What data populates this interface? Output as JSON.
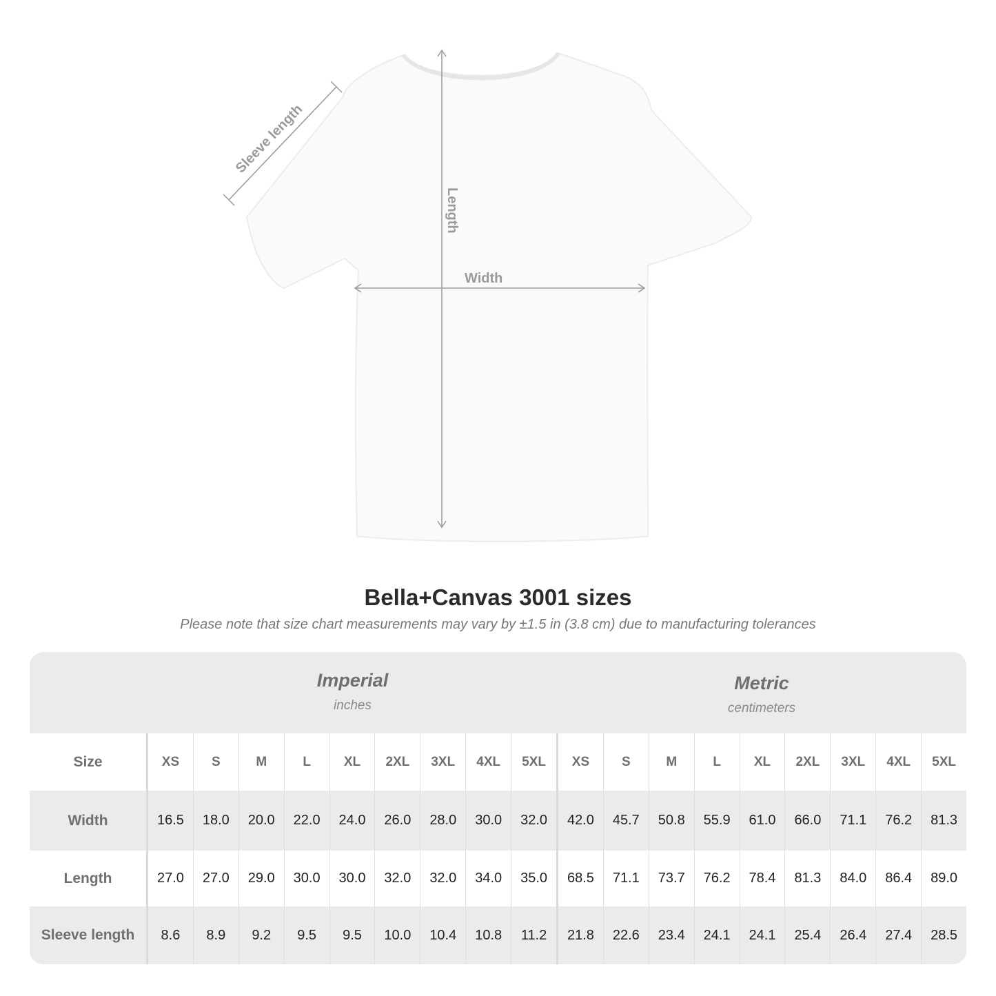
{
  "diagram": {
    "sleeve_label": "Sleeve length",
    "length_label": "Length",
    "width_label": "Width"
  },
  "title": "Bella+Canvas 3001 sizes",
  "subtitle": "Please note that size chart measurements may vary by ±1.5 in (3.8 cm) due to manufacturing tolerances",
  "table": {
    "imperial": {
      "name": "Imperial",
      "unit": "inches"
    },
    "metric": {
      "name": "Metric",
      "unit": "centimeters"
    },
    "size_header": "Size",
    "sizes": [
      "XS",
      "S",
      "M",
      "L",
      "XL",
      "2XL",
      "3XL",
      "4XL",
      "5XL",
      "XS",
      "S",
      "M",
      "L",
      "XL",
      "2XL",
      "3XL",
      "4XL",
      "5XL"
    ],
    "rows": [
      {
        "label": "Width",
        "values": [
          "16.5",
          "18.0",
          "20.0",
          "22.0",
          "24.0",
          "26.0",
          "28.0",
          "30.0",
          "32.0",
          "42.0",
          "45.7",
          "50.8",
          "55.9",
          "61.0",
          "66.0",
          "71.1",
          "76.2",
          "81.3"
        ]
      },
      {
        "label": "Length",
        "values": [
          "27.0",
          "27.0",
          "29.0",
          "30.0",
          "30.0",
          "32.0",
          "32.0",
          "34.0",
          "35.0",
          "68.5",
          "71.1",
          "73.7",
          "76.2",
          "78.4",
          "81.3",
          "84.0",
          "86.4",
          "89.0"
        ]
      },
      {
        "label": "Sleeve length",
        "values": [
          "8.6",
          "8.9",
          "9.2",
          "9.5",
          "9.5",
          "10.0",
          "10.4",
          "10.8",
          "11.2",
          "21.8",
          "22.6",
          "23.4",
          "24.1",
          "24.1",
          "25.4",
          "26.4",
          "27.4",
          "28.5"
        ]
      }
    ]
  },
  "colors": {
    "band": "#ebebeb",
    "label": "#6d6f71",
    "measure_line": "#9a9a9a"
  }
}
